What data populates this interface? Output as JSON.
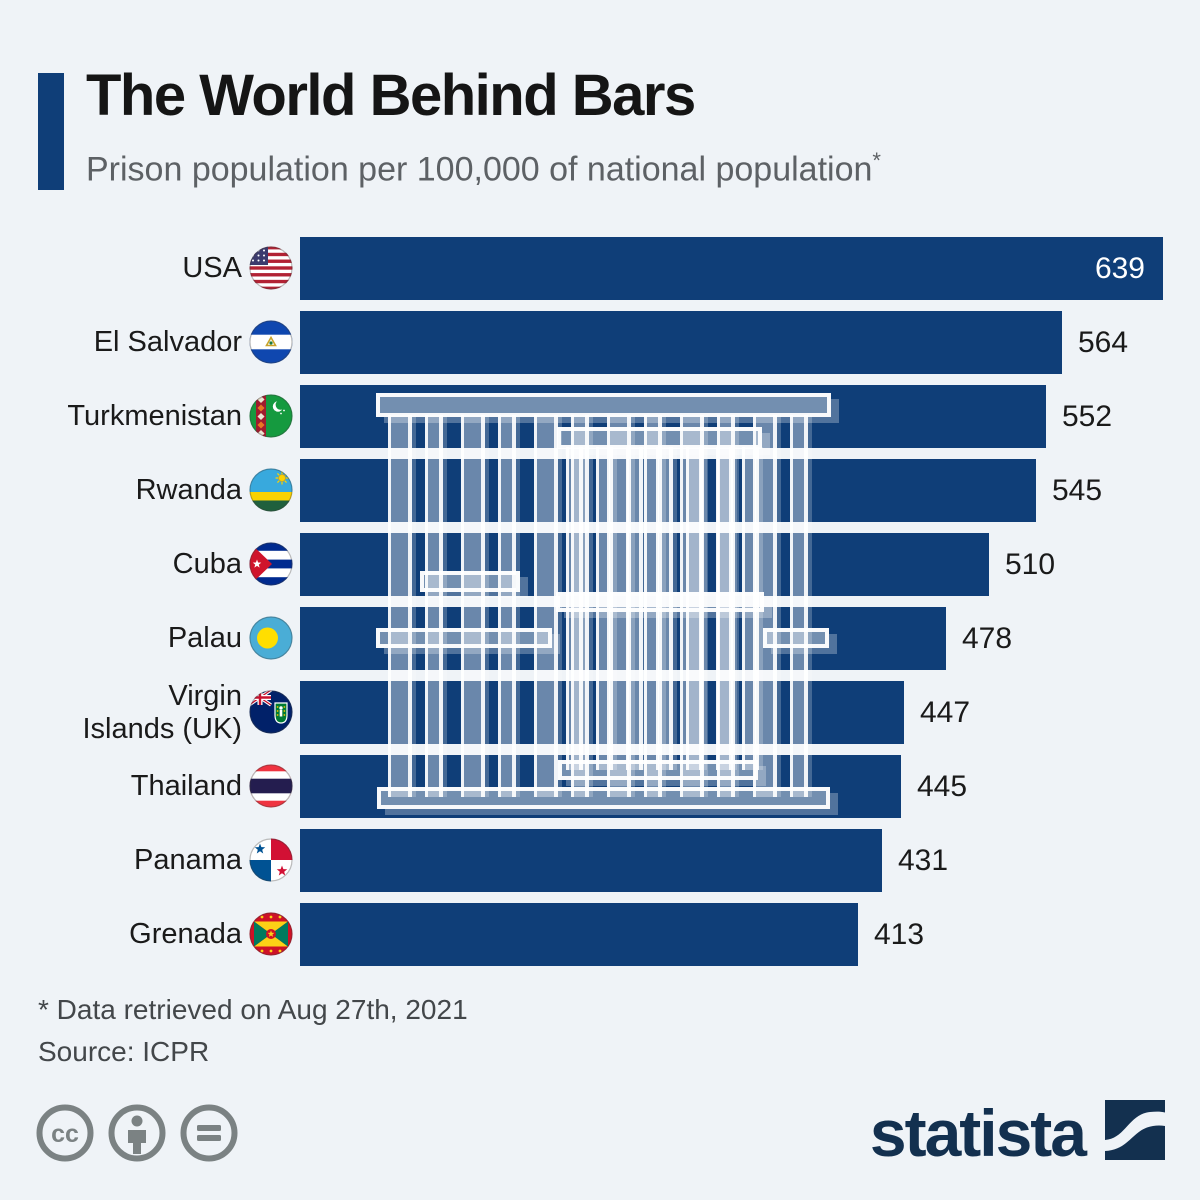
{
  "header": {
    "title": "The World Behind Bars",
    "subtitle": "Prison population per 100,000 of national population",
    "footnote_marker": "*"
  },
  "chart_data": {
    "type": "bar",
    "orientation": "horizontal",
    "title": "The World Behind Bars",
    "subtitle": "Prison population per 100,000 of national population*",
    "categories": [
      "USA",
      "El Salvador",
      "Turkmenistan",
      "Rwanda",
      "Cuba",
      "Palau",
      "Virgin Islands (UK)",
      "Thailand",
      "Panama",
      "Grenada"
    ],
    "display_labels": [
      "USA",
      "El Salvador",
      "Turkmenistan",
      "Rwanda",
      "Cuba",
      "Palau",
      "Virgin\nIslands (UK)",
      "Thailand",
      "Panama",
      "Grenada"
    ],
    "values": [
      639,
      564,
      552,
      545,
      510,
      478,
      447,
      445,
      431,
      413
    ],
    "flag_icons": [
      "usa-flag-icon",
      "el-salvador-flag-icon",
      "turkmenistan-flag-icon",
      "rwanda-flag-icon",
      "cuba-flag-icon",
      "palau-flag-icon",
      "virgin-islands-uk-flag-icon",
      "thailand-flag-icon",
      "panama-flag-icon",
      "grenada-flag-icon"
    ],
    "value_range": [
      0,
      639
    ],
    "bar_color": "#0f3e78",
    "value_label_color_inside": "#ffffff",
    "value_label_color_outside": "#1a1a1a",
    "grid": false,
    "legend": false
  },
  "footer": {
    "footnote": "* Data retrieved on Aug 27th, 2021",
    "source": "Source: ICPR",
    "license_icons": [
      "cc-icon",
      "attribution-person-icon",
      "equals-icon"
    ],
    "brand_wordmark": "statista"
  },
  "colors": {
    "background": "#eff3f7",
    "bar": "#0f3e78",
    "accent_bar": "#0f3e78",
    "title": "#151515",
    "subtitle": "#5d6165",
    "footnote": "#43474a",
    "license_gray": "#7b8283",
    "brand_navy": "#13304f",
    "overlay_steel": "#748fb1"
  }
}
